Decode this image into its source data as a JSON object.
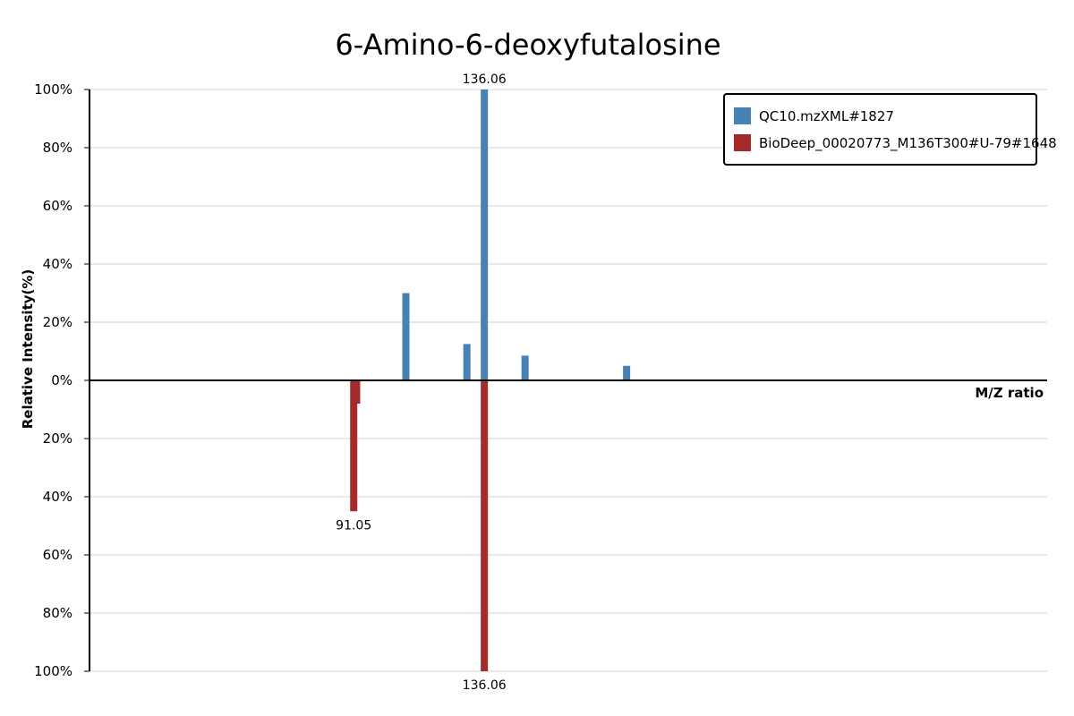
{
  "chart_data": {
    "type": "bar",
    "title": "6-Amino-6-deoxyfutalosine",
    "xlabel": "M/Z ratio",
    "ylabel": "Relative Intensity(%)",
    "x_range": [
      0,
      330
    ],
    "ylim_top": [
      0,
      100
    ],
    "ylim_bottom": [
      0,
      100
    ],
    "y_ticks_top": [
      "0%",
      "20%",
      "40%",
      "60%",
      "80%",
      "100%"
    ],
    "y_ticks_bottom": [
      "20%",
      "40%",
      "60%",
      "80%",
      "100%"
    ],
    "grid": true,
    "legend_position": "top-right",
    "series": [
      {
        "name": "QC10.mzXML#1827",
        "color": "#4682b4",
        "direction": "up",
        "peaks": [
          {
            "mz": 109.03,
            "intensity": 30,
            "label": ""
          },
          {
            "mz": 130.05,
            "intensity": 12.5,
            "label": ""
          },
          {
            "mz": 136.06,
            "intensity": 100,
            "label": "136.06"
          },
          {
            "mz": 150.09,
            "intensity": 8.5,
            "label": ""
          },
          {
            "mz": 185.08,
            "intensity": 5,
            "label": ""
          }
        ]
      },
      {
        "name": "BioDeep_00020773_M136T300#U-79#1648",
        "color": "#a52a2a",
        "direction": "down",
        "peaks": [
          {
            "mz": 91.05,
            "intensity": 45,
            "label": "91.05"
          },
          {
            "mz": 92.05,
            "intensity": 8,
            "label": ""
          },
          {
            "mz": 136.06,
            "intensity": 100,
            "label": "136.06"
          }
        ]
      }
    ]
  }
}
